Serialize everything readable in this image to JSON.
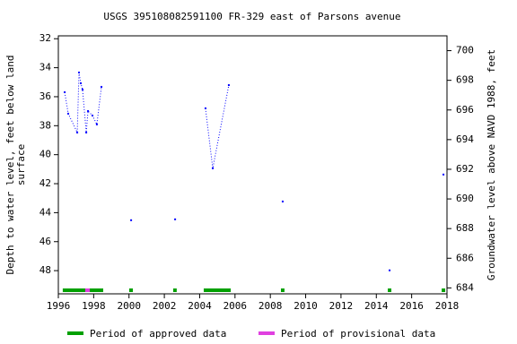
{
  "chart_data": {
    "type": "line",
    "title": "USGS 395108082591100 FR-329 east of Parsons avenue",
    "y_label": [
      "Depth to water level, feet below land",
      "surface"
    ],
    "y2_label": "Groundwater level above NAVD 1988, feet",
    "xlim": [
      1996,
      2018
    ],
    "xticks": [
      1996,
      1998,
      2000,
      2002,
      2004,
      2006,
      2008,
      2010,
      2012,
      2014,
      2016,
      2018
    ],
    "ylim": [
      31.8,
      49.6
    ],
    "yticks": [
      32,
      34,
      36,
      38,
      40,
      42,
      44,
      46,
      48
    ],
    "y_inverted": true,
    "y2lim": [
      683.6,
      701.0
    ],
    "y2ticks": [
      684,
      686,
      688,
      690,
      692,
      694,
      696,
      698,
      700
    ],
    "series": [
      {
        "color": "#0000ff",
        "x": [
          1996.36,
          1996.56,
          1997.07,
          1997.17,
          1997.27,
          1997.37,
          1997.58,
          1997.68,
          1997.93,
          1998.18,
          1998.44,
          null,
          2000.12,
          null,
          2002.61,
          null,
          2004.33,
          2004.74,
          2005.65,
          null,
          2008.7,
          null,
          2014.75,
          null,
          2017.8
        ],
        "values": [
          35.69,
          37.17,
          38.47,
          34.33,
          35.07,
          35.5,
          38.47,
          36.99,
          37.3,
          37.91,
          35.32,
          null,
          44.52,
          null,
          44.46,
          null,
          36.8,
          40.94,
          35.2,
          null,
          43.23,
          null,
          47.98,
          null,
          41.37
        ]
      }
    ],
    "periods": [
      {
        "name": "Period of approved data",
        "color": "#00a000",
        "ranges": [
          [
            1996.25,
            1998.54
          ],
          [
            2000.01,
            2000.22
          ],
          [
            2002.5,
            2002.7
          ],
          [
            2004.23,
            2005.76
          ],
          [
            2008.6,
            2008.8
          ],
          [
            2014.65,
            2014.85
          ],
          [
            2017.7,
            2017.9
          ]
        ]
      },
      {
        "name": "Period of provisional data",
        "color": "#e040e0",
        "ranges": [
          [
            1997.52,
            1997.78
          ]
        ]
      }
    ]
  }
}
